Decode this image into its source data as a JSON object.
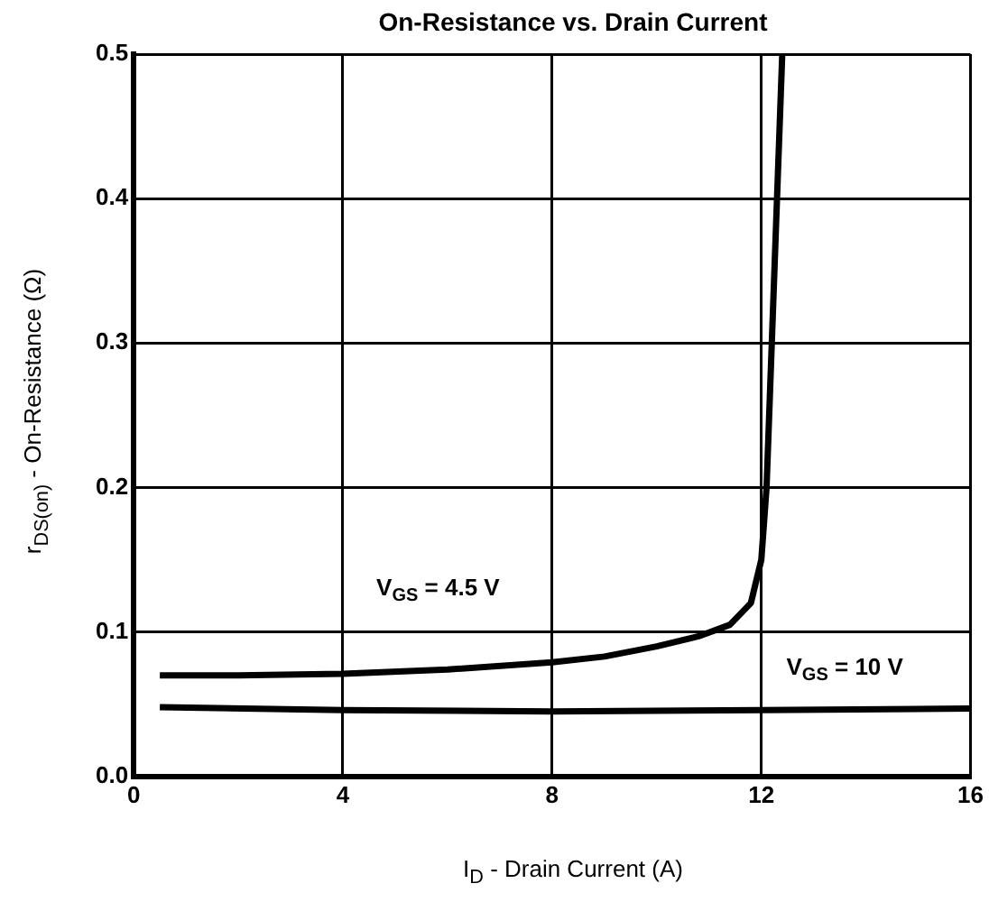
{
  "chart_data": {
    "type": "line",
    "title": "On-Resistance vs. Drain Current",
    "xlabel": "I$_{D}$ - Drain Current (A)",
    "ylabel": "r$_{DS(on)}$ - On-Resistance (Ω)",
    "series": [
      {
        "name": "V$_{GS}$ = 4.5 V",
        "color": "#000000",
        "x": [
          0.5,
          2,
          4,
          6,
          8,
          9,
          10,
          10.8,
          11.4,
          11.8,
          12.0,
          12.1,
          12.2,
          12.3,
          12.4
        ],
        "values": [
          0.07,
          0.07,
          0.071,
          0.074,
          0.079,
          0.083,
          0.09,
          0.097,
          0.105,
          0.12,
          0.15,
          0.2,
          0.3,
          0.4,
          0.5
        ]
      },
      {
        "name": "V$_{GS}$ = 10 V",
        "color": "#000000",
        "x": [
          0.5,
          4,
          8,
          12,
          16
        ],
        "values": [
          0.048,
          0.046,
          0.045,
          0.046,
          0.047
        ]
      }
    ],
    "xlim": [
      0,
      16
    ],
    "xticks": [
      0,
      4,
      8,
      12,
      16
    ],
    "ylim": [
      0,
      0.5
    ],
    "yticks": [
      {
        "value": 0,
        "label": "0.0"
      },
      0.1,
      0.2,
      0.3,
      0.4,
      0.5
    ],
    "grid": true,
    "legend": false,
    "marker": "none",
    "line_style": "solid"
  }
}
